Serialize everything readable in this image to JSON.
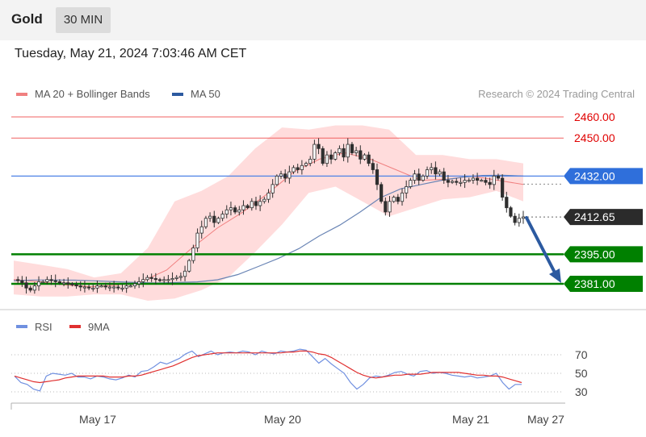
{
  "header": {
    "title": "Gold",
    "timeframe": "30 MIN",
    "timestamp": "Tuesday, May 21, 2024 7:03:46 AM CET"
  },
  "legend": {
    "ma20": "MA 20 + Bollinger Bands",
    "ma50": "MA 50",
    "credit": "Research © 2024 Trading Central",
    "rsi": "RSI",
    "ma9": "9MA"
  },
  "colors": {
    "resistance": "#e00000",
    "pivot": "#2f6fdb",
    "support": "#008000",
    "candle": "#2f2f2f",
    "ma20": "#f08080",
    "ma50": "#6a85b5",
    "band": "#ffd6d6",
    "arrow": "#2c5aa0",
    "rsi": "#7090e0",
    "rsi_ma": "#e03030"
  },
  "chart_data": [
    {
      "type": "candlestick",
      "x_labels": [
        "May 17",
        "May 20",
        "May 21",
        "May 27"
      ],
      "ylim": [
        2372,
        2465
      ],
      "levels": [
        {
          "value": 2460.0,
          "label": "2460.00",
          "kind": "resistance"
        },
        {
          "value": 2450.0,
          "label": "2450.00",
          "kind": "resistance"
        },
        {
          "value": 2432.0,
          "label": "2432.00",
          "kind": "pivot"
        },
        {
          "value": 2412.65,
          "label": "2412.65",
          "kind": "last"
        },
        {
          "value": 2395.0,
          "label": "2395.00",
          "kind": "support"
        },
        {
          "value": 2381.0,
          "label": "2381.00",
          "kind": "support"
        }
      ],
      "price_path": [
        2383,
        2382.5,
        2381.5,
        2379,
        2378,
        2380,
        2382,
        2382,
        2383,
        2382.5,
        2382,
        2381.5,
        2381.5,
        2381,
        2380.5,
        2380,
        2379.5,
        2379.5,
        2379,
        2379,
        2380,
        2380,
        2379.5,
        2379.5,
        2379.5,
        2379,
        2379,
        2380,
        2380,
        2381,
        2382,
        2383,
        2384,
        2383.5,
        2383,
        2382.5,
        2383,
        2383,
        2383.5,
        2384,
        2384.5,
        2387,
        2392,
        2398,
        2405,
        2408,
        2412,
        2413,
        2410,
        2412,
        2414,
        2416,
        2417,
        2415,
        2416,
        2418,
        2417,
        2420,
        2418,
        2420,
        2421,
        2424,
        2428,
        2432,
        2433,
        2431,
        2434,
        2436,
        2435,
        2437,
        2438,
        2440,
        2447,
        2445,
        2438,
        2442,
        2440,
        2443,
        2445,
        2441,
        2447,
        2443,
        2444,
        2440,
        2442,
        2438,
        2435,
        2428,
        2420,
        2415,
        2420,
        2422,
        2420,
        2424,
        2427,
        2430,
        2433,
        2430,
        2432,
        2435,
        2436,
        2433,
        2434,
        2430,
        2429,
        2429.5,
        2429,
        2429,
        2430,
        2430,
        2431,
        2430,
        2430,
        2429,
        2428,
        2432,
        2431,
        2422,
        2417,
        2413,
        2410,
        2412,
        2412.65
      ],
      "ma50": [
        2382.5,
        2382.8,
        2382.8,
        2382.7,
        2382.4,
        2382.0,
        2381.6,
        2381.4,
        2381.6,
        2381.9,
        2382.9,
        2385.4,
        2389.2,
        2393.1,
        2397.7,
        2403.7,
        2408.8,
        2415.0,
        2421.8,
        2426.0,
        2428.0,
        2430.0,
        2431.4,
        2432.3,
        2432.4,
        2432.0
      ],
      "ma20": [
        2383.0,
        2382.0,
        2380.5,
        2379.6,
        2380.3,
        2382.0,
        2387.5,
        2398.0,
        2407.5,
        2415.0,
        2424.0,
        2434.0,
        2440.0,
        2443.0,
        2440.0,
        2435.0,
        2430.0,
        2430.5,
        2432.0,
        2430.0,
        2428.0
      ],
      "bb_upper": [
        2392.0,
        2390.0,
        2388.0,
        2384.0,
        2386.0,
        2398.0,
        2420.0,
        2425.0,
        2432.0,
        2445.0,
        2455.0,
        2454.0,
        2456.0,
        2456.0,
        2454.0,
        2442.0,
        2442.0,
        2440.0,
        2440.0,
        2438.0
      ],
      "bb_lower": [
        2376.0,
        2375.0,
        2375.0,
        2376.0,
        2376.0,
        2373.0,
        2374.0,
        2378.0,
        2384.0,
        2396.0,
        2409.0,
        2424.0,
        2427.0,
        2420.0,
        2413.0,
        2417.0,
        2421.0,
        2422.0,
        2425.0,
        2420.0
      ]
    },
    {
      "type": "line",
      "series": [
        {
          "name": "RSI"
        },
        {
          "name": "9MA"
        }
      ],
      "y_ticks": [
        70,
        50,
        30
      ],
      "ylim": [
        20,
        82
      ],
      "rsi": [
        47,
        40,
        38,
        33,
        31,
        47,
        50,
        49,
        48,
        50,
        46,
        46,
        44,
        47,
        46,
        44,
        43,
        45,
        48,
        46,
        52,
        53,
        57,
        62,
        60,
        63,
        66,
        71,
        74,
        68,
        71,
        74,
        70,
        72,
        73,
        72,
        74,
        73,
        70,
        74,
        72,
        71,
        74,
        73,
        74,
        76,
        75,
        68,
        61,
        66,
        60,
        55,
        50,
        40,
        33,
        38,
        45,
        47,
        46,
        48,
        51,
        52,
        49,
        47,
        52,
        53,
        50,
        51,
        50,
        48,
        47,
        46,
        47,
        45,
        46,
        47,
        50,
        40,
        33,
        38,
        38
      ],
      "rsi_ma": [
        47,
        45,
        43,
        41,
        40,
        41,
        42,
        43,
        45,
        46,
        47,
        47,
        47,
        47,
        47,
        46,
        46,
        46,
        47,
        47,
        48,
        50,
        52,
        54,
        56,
        58,
        61,
        64,
        67,
        69,
        70,
        71,
        72,
        72,
        72,
        72,
        72,
        72,
        72,
        72,
        72,
        72,
        72,
        73,
        73,
        74,
        74,
        73,
        71,
        70,
        67,
        63,
        59,
        55,
        51,
        48,
        46,
        45,
        46,
        47,
        48,
        48,
        49,
        49,
        49,
        50,
        51,
        51,
        51,
        51,
        51,
        50,
        49,
        48,
        48,
        47,
        47,
        46,
        44,
        42,
        40
      ]
    }
  ]
}
